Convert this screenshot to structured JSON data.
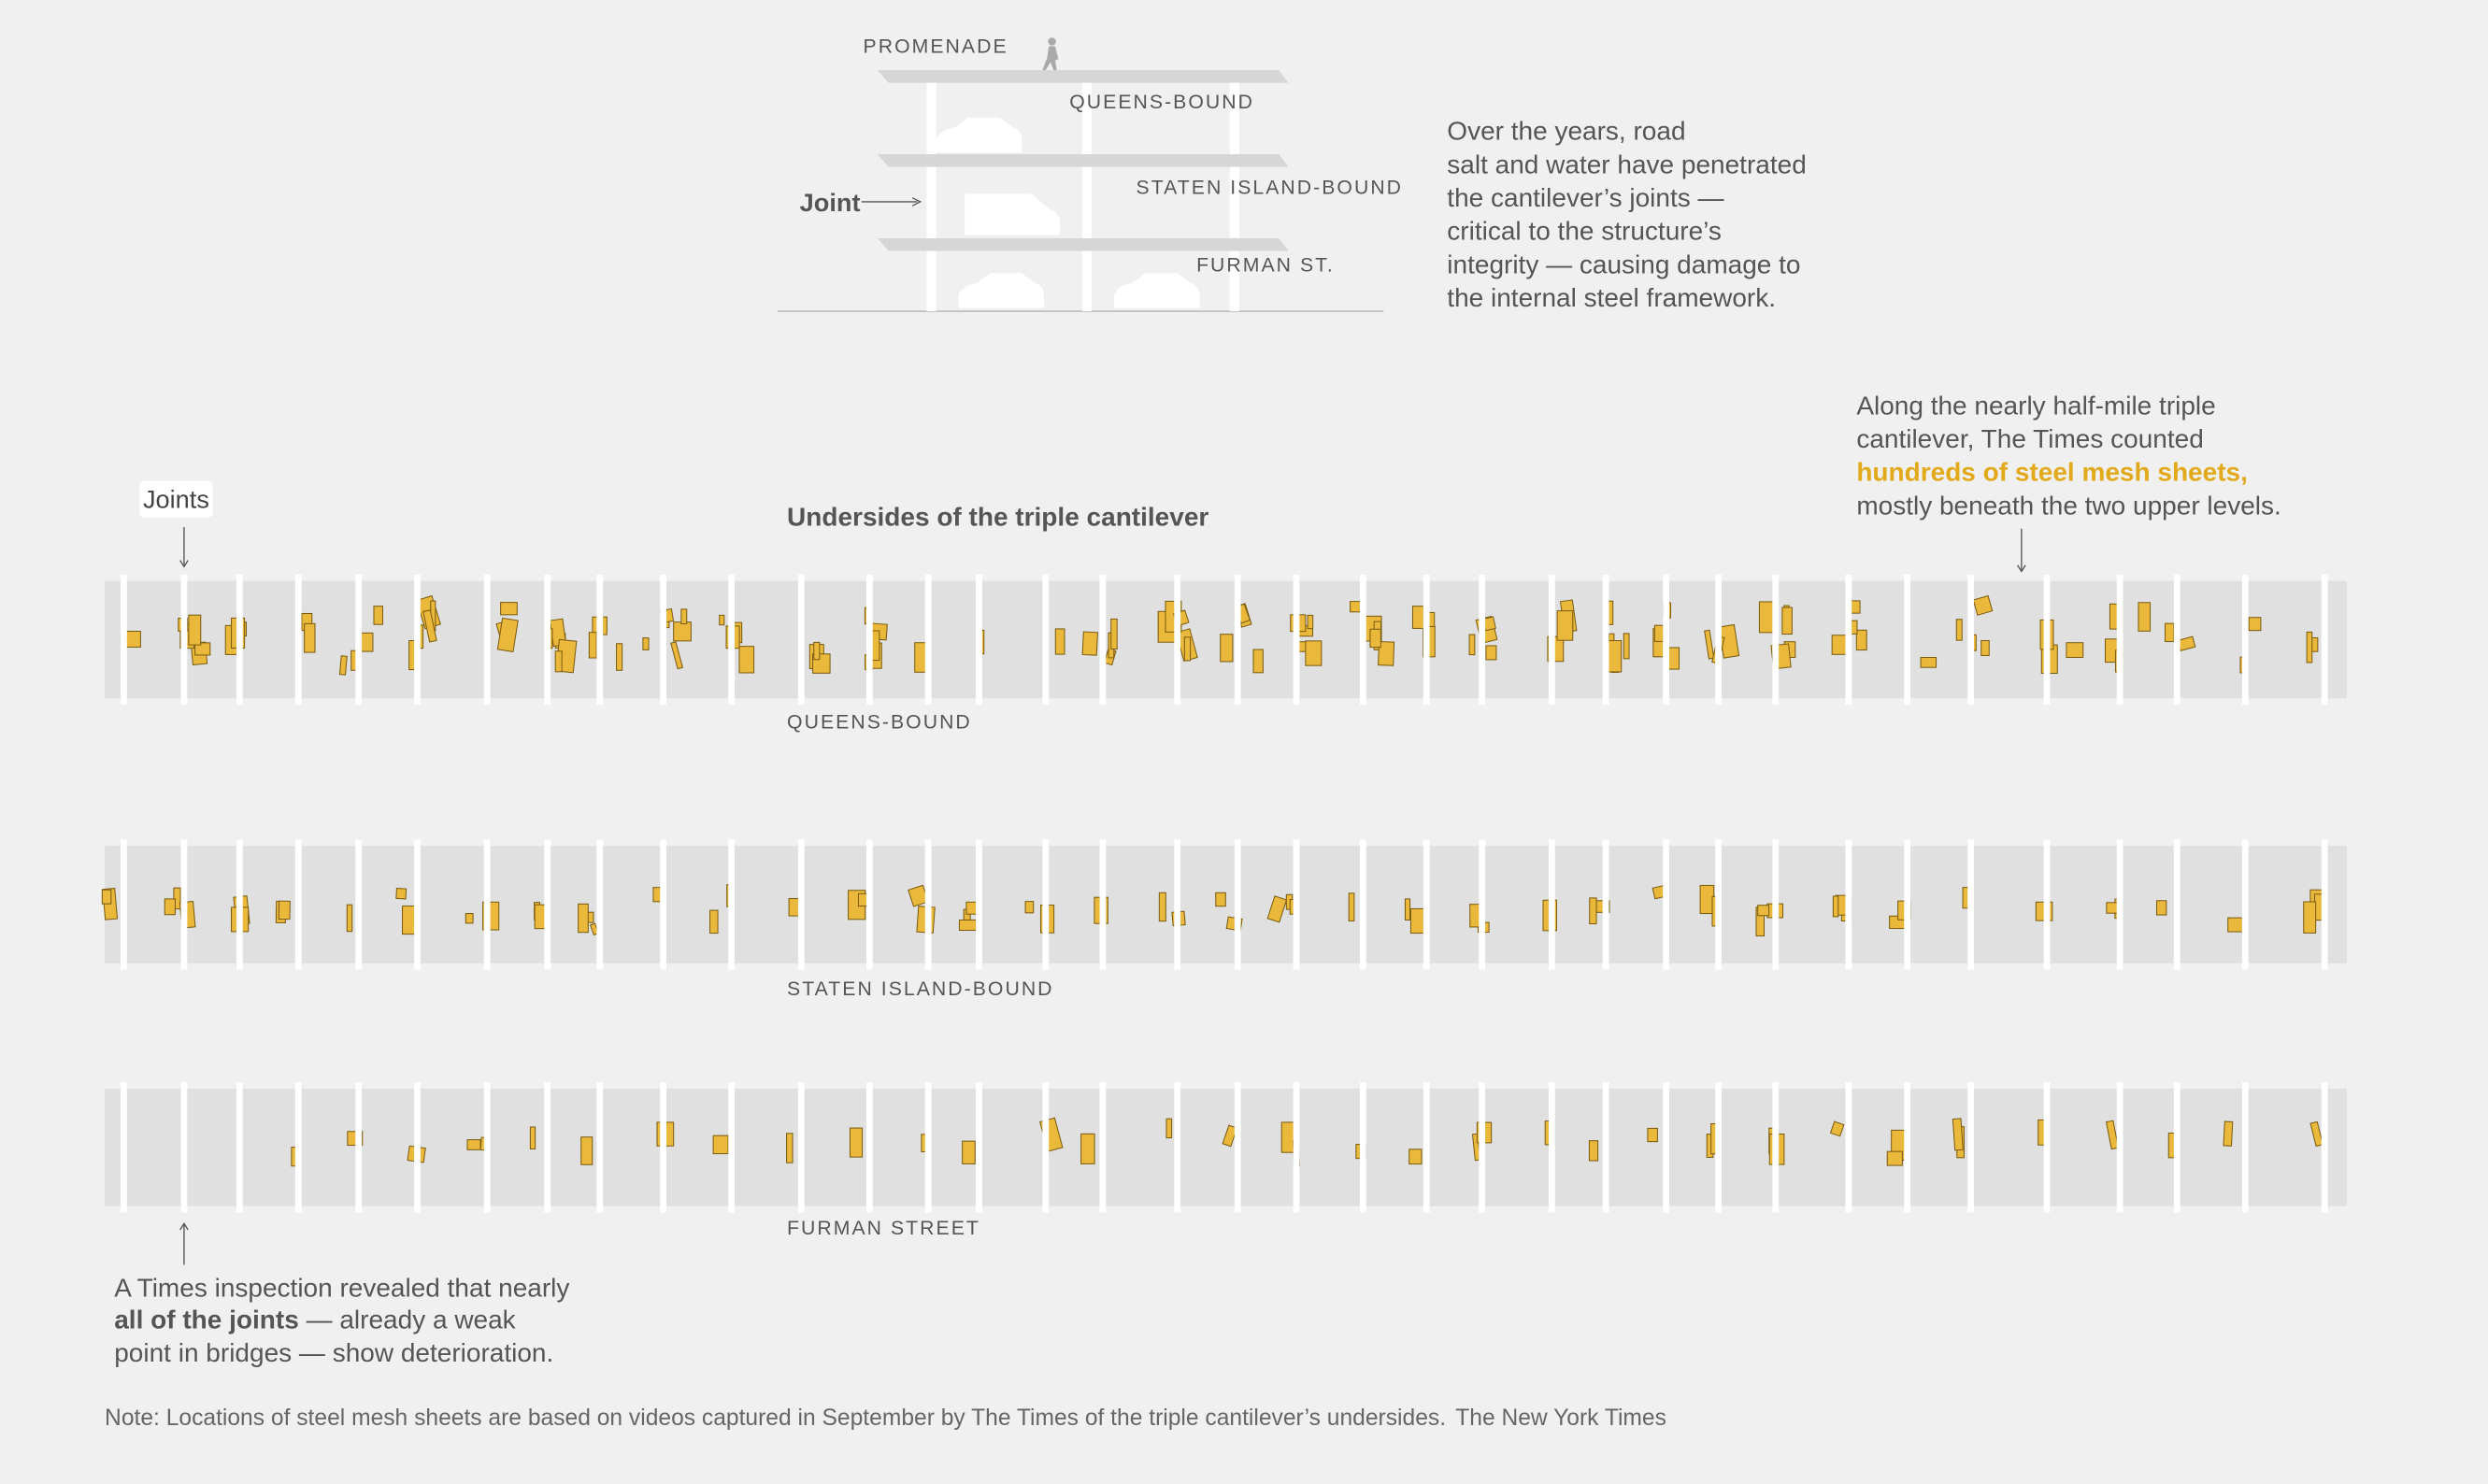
{
  "illustration": {
    "levels": [
      "PROMENADE",
      "QUEENS-BOUND",
      "STATEN ISLAND-BOUND",
      "FURMAN ST."
    ],
    "joint_label": "Joint"
  },
  "intro": [
    "Over the years, road",
    "salt and water have penetrated",
    "the cantilever’s joints —",
    "critical to the structure’s",
    "integrity — causing damage to",
    "the internal steel framework."
  ],
  "right_note": {
    "lines": [
      "Along the nearly half-mile triple",
      "cantilever, The Times counted",
      "hundreds of steel mesh sheets,",
      "mostly beneath the two upper levels."
    ]
  },
  "joints_label": "Joints",
  "chart_title": "Undersides of the triple cantilever",
  "strips": [
    "QUEENS-BOUND",
    "STATEN ISLAND-BOUND",
    "FURMAN STREET"
  ],
  "bottom_note": {
    "line1": "A Times inspection revealed that nearly",
    "line2_bold": "all of the  joints",
    "line2_rest": " — already a weak",
    "line3": "point in bridges — show deterioration."
  },
  "note": "Note: Locations of steel mesh sheets are based on videos captured in September by The Times of the triple cantilever’s undersides.",
  "credit": "The New York Times"
}
